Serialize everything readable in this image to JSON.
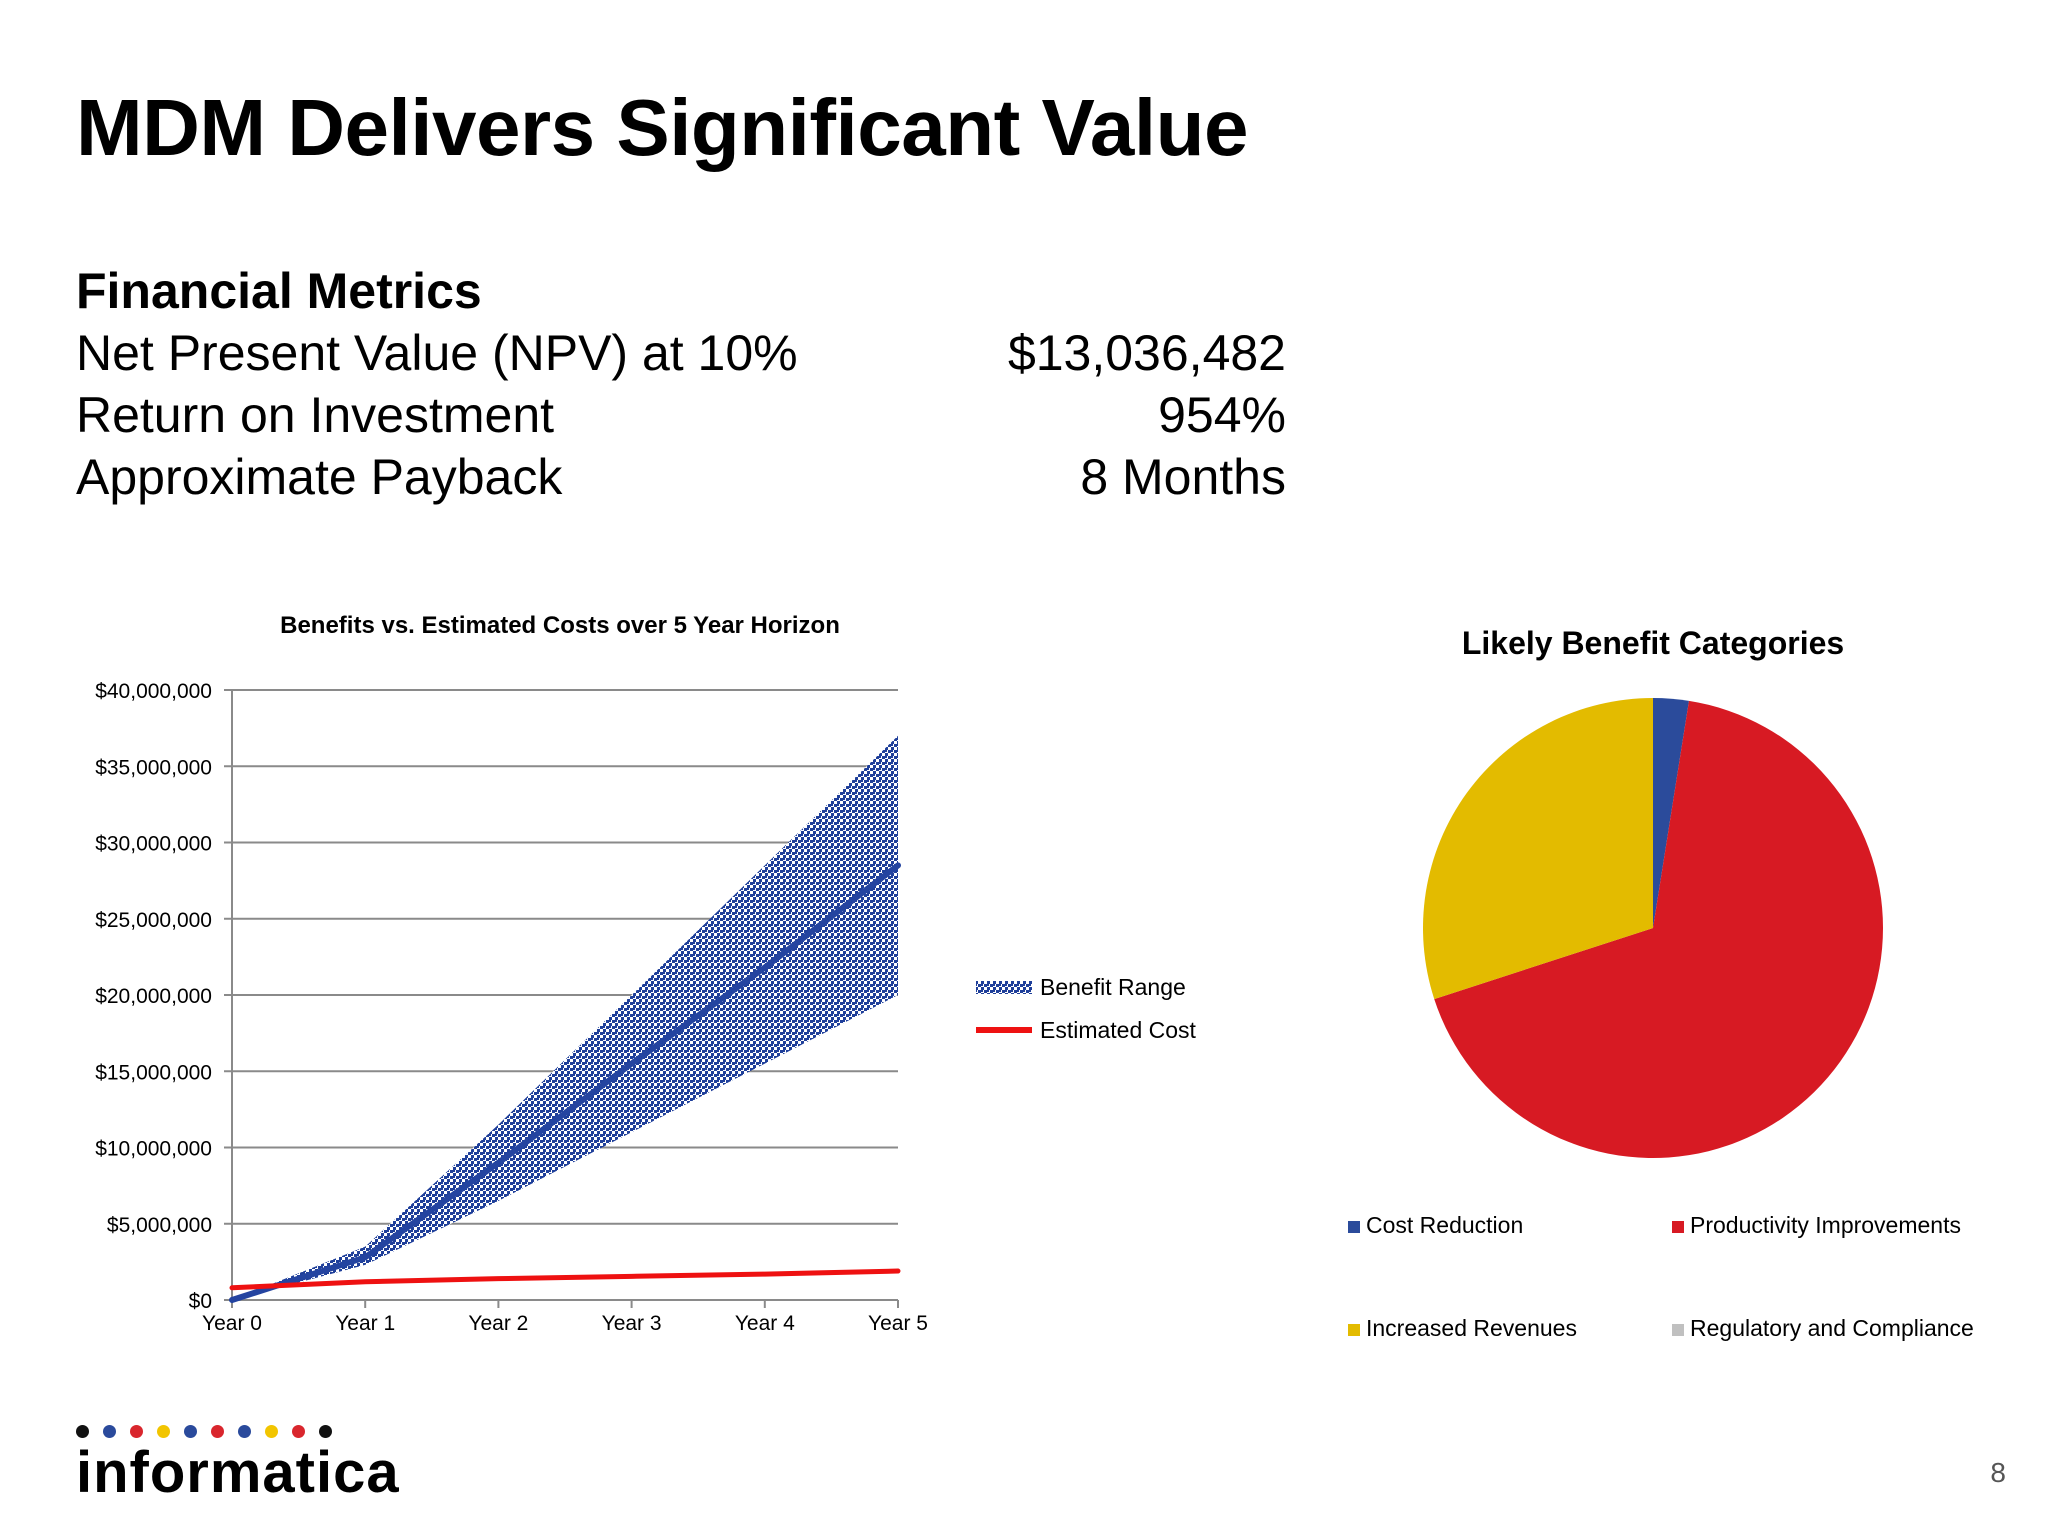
{
  "slide": {
    "title": "MDM Delivers Significant Value",
    "page_number": "8"
  },
  "financial_metrics": {
    "heading": "Financial Metrics",
    "rows": [
      {
        "label": "Net Present Value (NPV) at 10%",
        "value": "$13,036,482"
      },
      {
        "label": "Return on Investment",
        "value": "954%"
      },
      {
        "label": "Approximate Payback",
        "value": "8 Months"
      }
    ]
  },
  "logo": {
    "text": "informatica",
    "dot_colors": [
      "#111111",
      "#2a4a9c",
      "#d9262d",
      "#f2c500",
      "#2a4a9c",
      "#d9262d",
      "#2a4a9c",
      "#f2c500",
      "#d9262d",
      "#111111"
    ]
  },
  "chart_data": [
    {
      "type": "line",
      "title": "Benefits vs. Estimated Costs over 5 Year Horizon",
      "x": [
        "Year 0",
        "Year 1",
        "Year 2",
        "Year 3",
        "Year 4",
        "Year 5"
      ],
      "ylim": [
        0,
        40000000
      ],
      "y_ticks": [
        0,
        5000000,
        10000000,
        15000000,
        20000000,
        25000000,
        30000000,
        35000000,
        40000000
      ],
      "y_tick_labels": [
        "$0",
        "$5,000,000",
        "$10,000,000",
        "$15,000,000",
        "$20,000,000",
        "$25,000,000",
        "$30,000,000",
        "$35,000,000",
        "$40,000,000"
      ],
      "grid": true,
      "legend_position": "right",
      "benefit_range": {
        "name": "Benefit Range",
        "color": "#1f3f9a",
        "low": [
          0,
          2300000,
          6500000,
          11000000,
          15500000,
          20000000
        ],
        "high": [
          0,
          3500000,
          11500000,
          20000000,
          28500000,
          37000000
        ]
      },
      "series": [
        {
          "name": "",
          "color": "#2444a0",
          "values": [
            0,
            2800000,
            9000000,
            15500000,
            21800000,
            28500000
          ]
        },
        {
          "name": "Estimated Cost",
          "color": "#ee1111",
          "values": [
            800000,
            1200000,
            1400000,
            1550000,
            1700000,
            1900000
          ]
        }
      ]
    },
    {
      "type": "pie",
      "title": "Likely Benefit Categories",
      "legend_position": "bottom",
      "slices": [
        {
          "name": "Cost Reduction",
          "value": 2.5,
          "color": "#2b4b9b"
        },
        {
          "name": "Productivity Improvements",
          "value": 67.5,
          "color": "#d71a23"
        },
        {
          "name": "Increased Revenues",
          "value": 30.0,
          "color": "#e3bb00"
        },
        {
          "name": "Regulatory and Compliance",
          "value": 0,
          "color": "#c0c0c0"
        }
      ]
    }
  ]
}
